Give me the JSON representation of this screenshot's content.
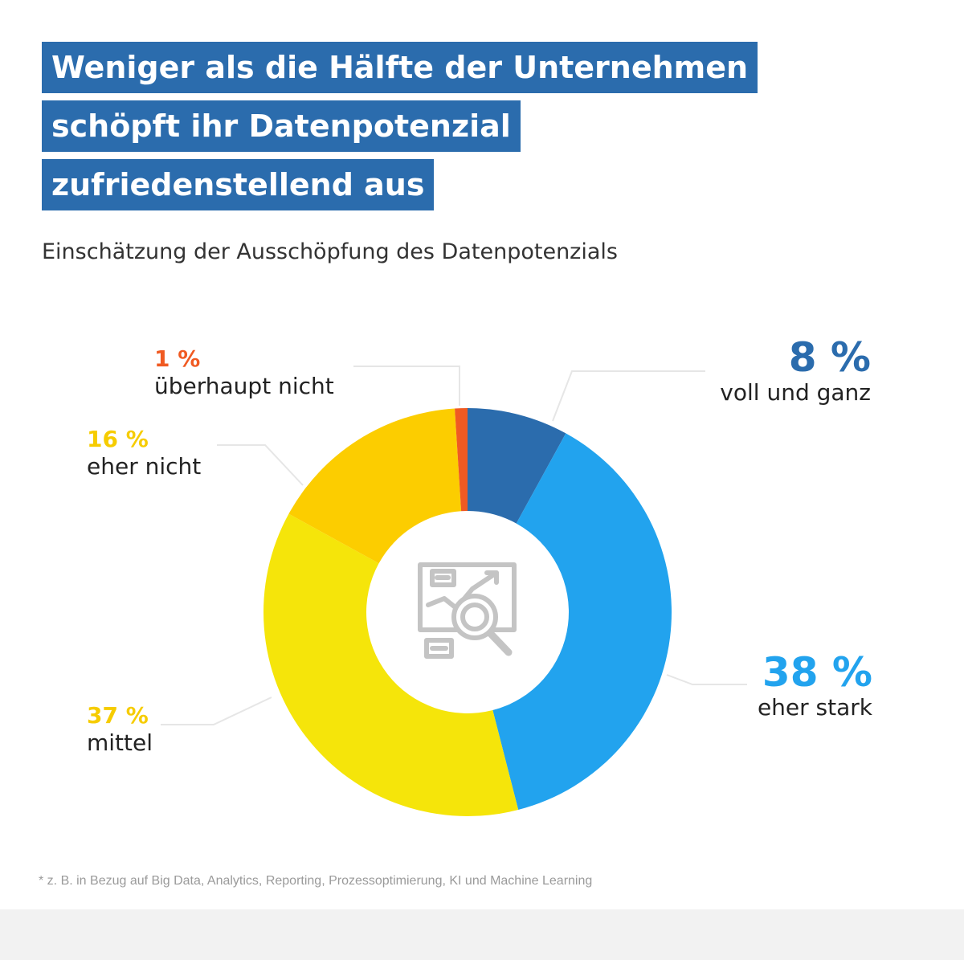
{
  "title_lines": [
    "Weniger als die Hälfte der Unternehmen",
    "schöpft ihr Datenpotenzial",
    "zufriedenstellend aus"
  ],
  "subtitle": "Einschätzung der Ausschöpfung des Datenpotenzials",
  "footnote": "* z. B. in Bezug auf Big Data, Analytics, Reporting, Prozessoptimierung, KI und Machine Learning",
  "chart_data": {
    "type": "pie",
    "subtype": "donut",
    "title": "Einschätzung der Ausschöpfung des Datenpotenzials",
    "categories": [
      "voll und ganz",
      "eher stark",
      "mittel",
      "eher nicht",
      "überhaupt nicht"
    ],
    "values": [
      8,
      38,
      37,
      16,
      1
    ],
    "unit": "%",
    "colors": [
      "#2b6cad",
      "#22a3ee",
      "#f5e50a",
      "#fccd00",
      "#f05a22"
    ],
    "center_icon": "data-analytics-magnifier-icon",
    "labels": [
      {
        "pct": "8 %",
        "name": "voll und ganz"
      },
      {
        "pct": "38 %",
        "name": "eher stark"
      },
      {
        "pct": "37 %",
        "name": "mittel"
      },
      {
        "pct": "16 %",
        "name": "eher nicht"
      },
      {
        "pct": "1 %",
        "name": "überhaupt nicht"
      }
    ]
  }
}
